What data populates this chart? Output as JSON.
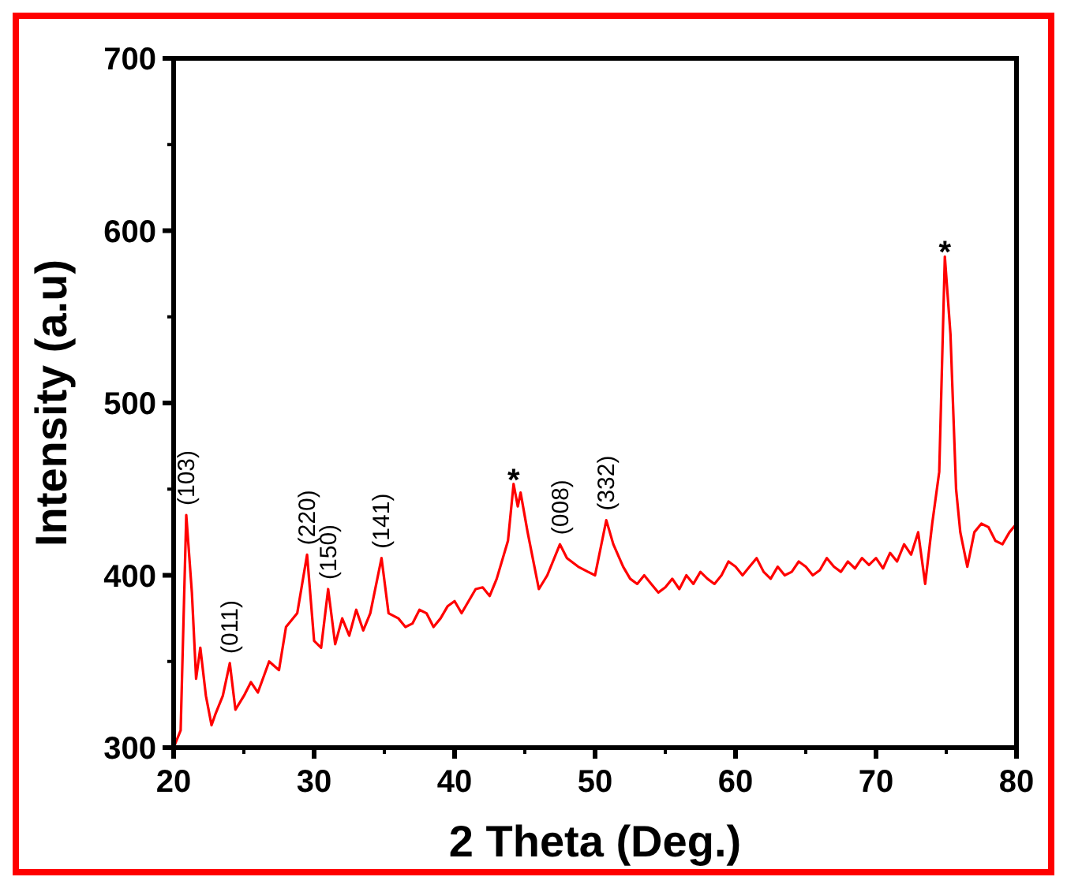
{
  "chart_data": {
    "type": "line",
    "xlabel": "2 Theta (Deg.)",
    "ylabel": "Intensity (a.u)",
    "xlim": [
      20,
      80
    ],
    "xticks": [
      20,
      30,
      40,
      50,
      60,
      70,
      80
    ],
    "ylim": [
      300,
      700
    ],
    "yticks": [
      300,
      400,
      500,
      600,
      700
    ],
    "grid": false,
    "marker": "none",
    "line_style": "solid",
    "series": [
      {
        "color": "#ff0000",
        "x": [
          20,
          20.5,
          20.9,
          21.3,
          21.6,
          21.9,
          22.3,
          22.7,
          23,
          23.5,
          24,
          24.4,
          25,
          25.5,
          26,
          26.8,
          27.5,
          28,
          28.8,
          29.5,
          30,
          30.5,
          31,
          31.5,
          32,
          32.5,
          33,
          33.5,
          34,
          34.8,
          35.3,
          36,
          36.5,
          37,
          37.5,
          38,
          38.5,
          39,
          39.5,
          40,
          40.5,
          41,
          41.5,
          42,
          42.5,
          43,
          43.8,
          44.2,
          44.5,
          44.7,
          45.2,
          46,
          46.6,
          47.5,
          48,
          48.8,
          49.5,
          50,
          50.8,
          51.3,
          52,
          52.5,
          53,
          53.5,
          54,
          54.5,
          55,
          55.5,
          56,
          56.5,
          57,
          57.5,
          58,
          58.5,
          59,
          59.5,
          60,
          60.5,
          61,
          61.5,
          62,
          62.5,
          63,
          63.5,
          64,
          64.5,
          65,
          65.5,
          66,
          66.5,
          67,
          67.5,
          68,
          68.5,
          69,
          69.5,
          70,
          70.5,
          71,
          71.5,
          72,
          72.5,
          73,
          73.5,
          74,
          74.5,
          74.9,
          75.3,
          75.7,
          76,
          76.5,
          77,
          77.5,
          78,
          78.5,
          79,
          79.5,
          80
        ],
        "values": [
          300,
          310,
          435,
          390,
          340,
          358,
          330,
          313,
          320,
          330,
          349,
          322,
          330,
          338,
          332,
          350,
          345,
          370,
          378,
          412,
          362,
          358,
          392,
          360,
          375,
          365,
          380,
          368,
          378,
          410,
          378,
          375,
          370,
          372,
          380,
          378,
          370,
          375,
          382,
          385,
          378,
          385,
          392,
          393,
          388,
          398,
          420,
          453,
          440,
          448,
          425,
          392,
          400,
          418,
          410,
          405,
          402,
          400,
          432,
          418,
          405,
          398,
          395,
          400,
          395,
          390,
          393,
          398,
          392,
          400,
          395,
          402,
          398,
          395,
          400,
          408,
          405,
          400,
          405,
          410,
          402,
          398,
          405,
          400,
          402,
          408,
          405,
          400,
          403,
          410,
          405,
          402,
          408,
          404,
          410,
          406,
          410,
          404,
          413,
          408,
          418,
          412,
          425,
          395,
          430,
          460,
          585,
          540,
          450,
          425,
          405,
          425,
          430,
          428,
          420,
          418,
          425,
          430
        ]
      }
    ],
    "annotations": [
      {
        "text": "(103)",
        "x": 20.9,
        "y": 435
      },
      {
        "text": "(011)",
        "x": 24,
        "y": 349
      },
      {
        "text": "(220)",
        "x": 29.5,
        "y": 412
      },
      {
        "text": "(150)",
        "x": 31,
        "y": 392
      },
      {
        "text": "(141)",
        "x": 34.8,
        "y": 410
      },
      {
        "text": "*",
        "x": 44.2,
        "y": 453
      },
      {
        "text": "(008)",
        "x": 47.5,
        "y": 418
      },
      {
        "text": "(332)",
        "x": 50.8,
        "y": 432
      },
      {
        "text": "*",
        "x": 74.9,
        "y": 585
      }
    ]
  }
}
